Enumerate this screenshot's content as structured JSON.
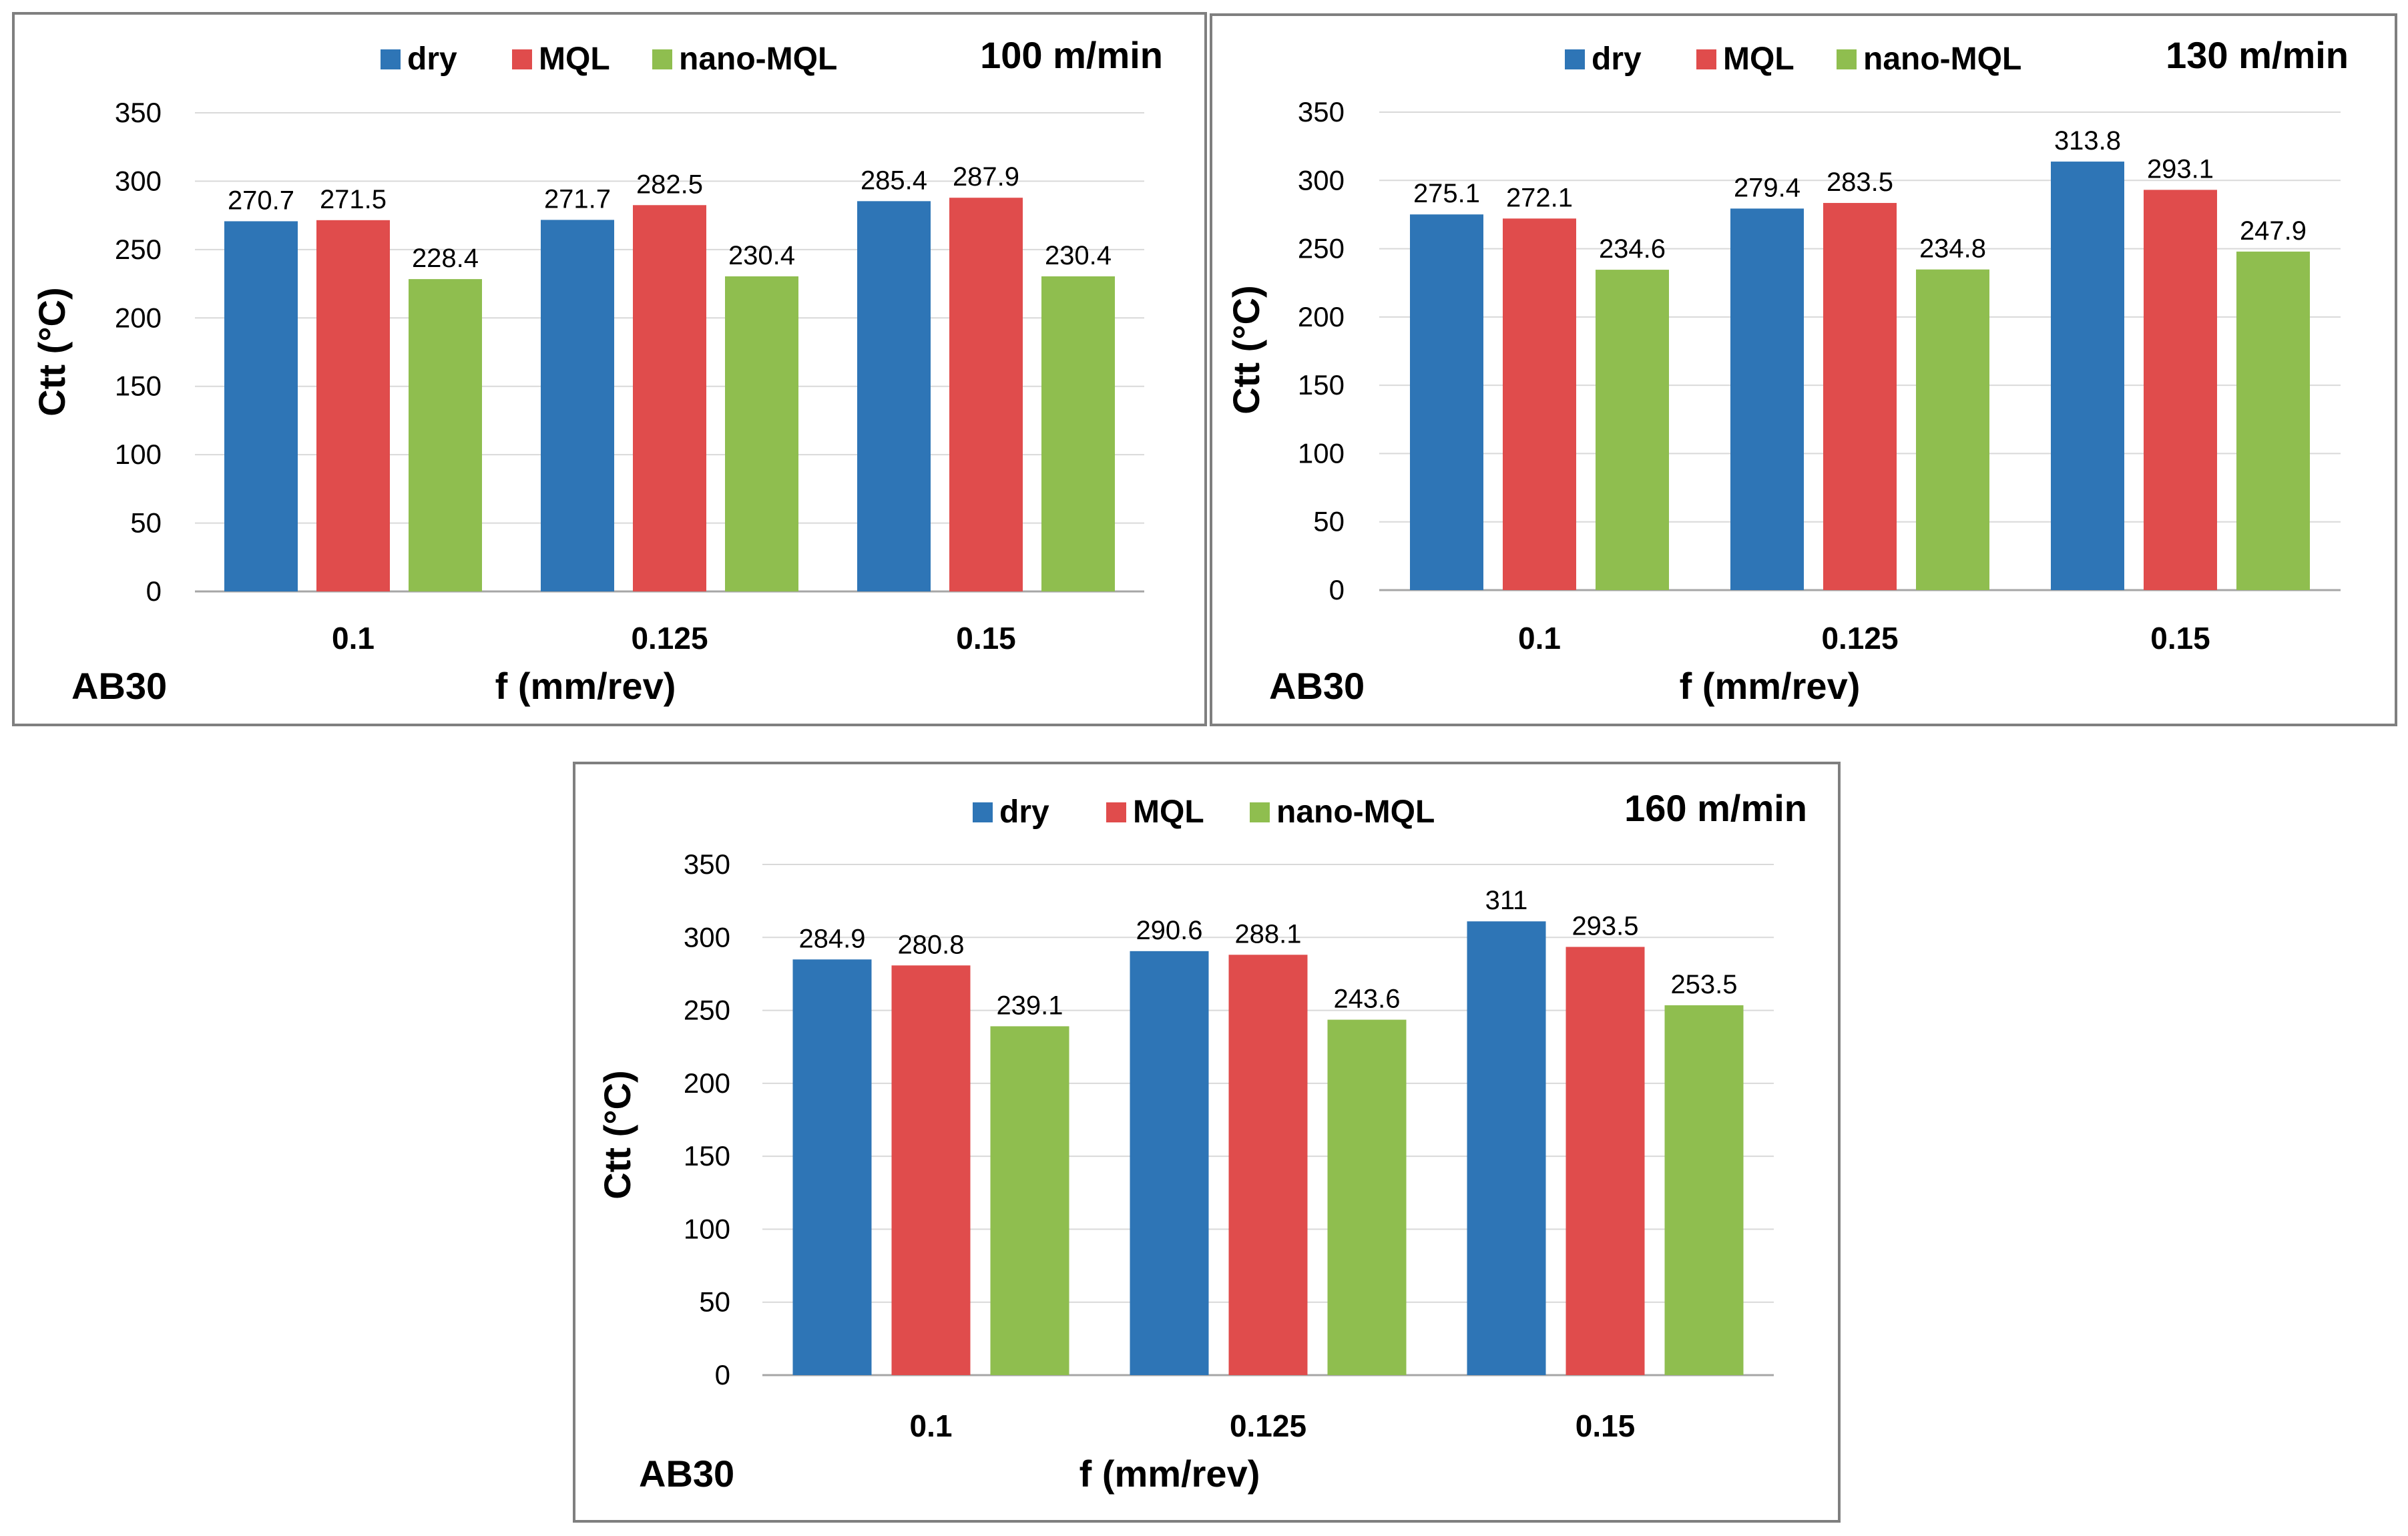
{
  "chart_data": [
    {
      "type": "bar",
      "title": "100 m/min",
      "corner_label": "AB30",
      "xlabel": "f (mm/rev)",
      "ylabel": "Ctt (°C)",
      "ylim": [
        0,
        350
      ],
      "yticks": [
        0,
        50,
        100,
        150,
        200,
        250,
        300,
        350
      ],
      "grid": true,
      "legend_position": "top-center",
      "categories": [
        "0.1",
        "0.125",
        "0.15"
      ],
      "series": [
        {
          "name": "dry",
          "color": "#2e75b6",
          "values": [
            270.7,
            271.7,
            285.4
          ],
          "labels": [
            "270.7",
            "271.7",
            "285.4"
          ]
        },
        {
          "name": "MQL",
          "color": "#e04c4c",
          "values": [
            271.5,
            282.5,
            287.9
          ],
          "labels": [
            "271.5",
            "282.5",
            "287.9"
          ]
        },
        {
          "name": "nano-MQL",
          "color": "#8fbe4f",
          "values": [
            228.4,
            230.4,
            230.4
          ],
          "labels": [
            "228.4",
            "230.4",
            "230.4"
          ]
        }
      ]
    },
    {
      "type": "bar",
      "title": "130 m/min",
      "corner_label": "AB30",
      "xlabel": "f (mm/rev)",
      "ylabel": "Ctt (°C)",
      "ylim": [
        0,
        350
      ],
      "yticks": [
        0,
        50,
        100,
        150,
        200,
        250,
        300,
        350
      ],
      "grid": true,
      "legend_position": "top-center",
      "categories": [
        "0.1",
        "0.125",
        "0.15"
      ],
      "series": [
        {
          "name": "dry",
          "color": "#2e75b6",
          "values": [
            275.1,
            279.4,
            313.8
          ],
          "labels": [
            "275.1",
            "279.4",
            "313.8"
          ]
        },
        {
          "name": "MQL",
          "color": "#e04c4c",
          "values": [
            272.1,
            283.5,
            293.1
          ],
          "labels": [
            "272.1",
            "283.5",
            "293.1"
          ]
        },
        {
          "name": "nano-MQL",
          "color": "#8fbe4f",
          "values": [
            234.6,
            234.8,
            247.9
          ],
          "labels": [
            "234.6",
            "234.8",
            "247.9"
          ]
        }
      ]
    },
    {
      "type": "bar",
      "title": "160 m/min",
      "corner_label": "AB30",
      "xlabel": "f (mm/rev)",
      "ylabel": "Ctt (°C)",
      "ylim": [
        0,
        350
      ],
      "yticks": [
        0,
        50,
        100,
        150,
        200,
        250,
        300,
        350
      ],
      "grid": true,
      "legend_position": "top-center",
      "categories": [
        "0.1",
        "0.125",
        "0.15"
      ],
      "series": [
        {
          "name": "dry",
          "color": "#2e75b6",
          "values": [
            284.9,
            290.6,
            311
          ],
          "labels": [
            "284.9",
            "290.6",
            "311"
          ]
        },
        {
          "name": "MQL",
          "color": "#e04c4c",
          "values": [
            280.8,
            288.1,
            293.5
          ],
          "labels": [
            "280.8",
            "288.1",
            "293.5"
          ]
        },
        {
          "name": "nano-MQL",
          "color": "#8fbe4f",
          "values": [
            239.1,
            243.6,
            253.5
          ],
          "labels": [
            "239.1",
            "243.6",
            "253.5"
          ]
        }
      ]
    }
  ]
}
